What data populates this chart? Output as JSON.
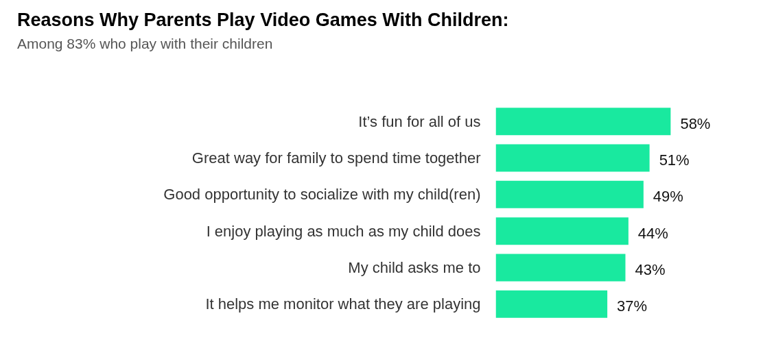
{
  "chart_data": {
    "type": "bar",
    "orientation": "horizontal",
    "title": "Reasons Why Parents Play Video Games With Children:",
    "subtitle": "Among 83% who play with their children",
    "categories": [
      "It’s fun for all of us",
      "Great way for family to spend time together",
      "Good opportunity to socialize with my child(ren)",
      "I enjoy playing as much as my child does",
      "My child asks me to",
      "It helps me monitor what they are playing"
    ],
    "values": [
      58,
      51,
      49,
      44,
      43,
      37
    ],
    "value_labels": [
      "58%",
      "51%",
      "49%",
      "44%",
      "43%",
      "37%"
    ],
    "color": "#19e99f",
    "grid": false
  }
}
